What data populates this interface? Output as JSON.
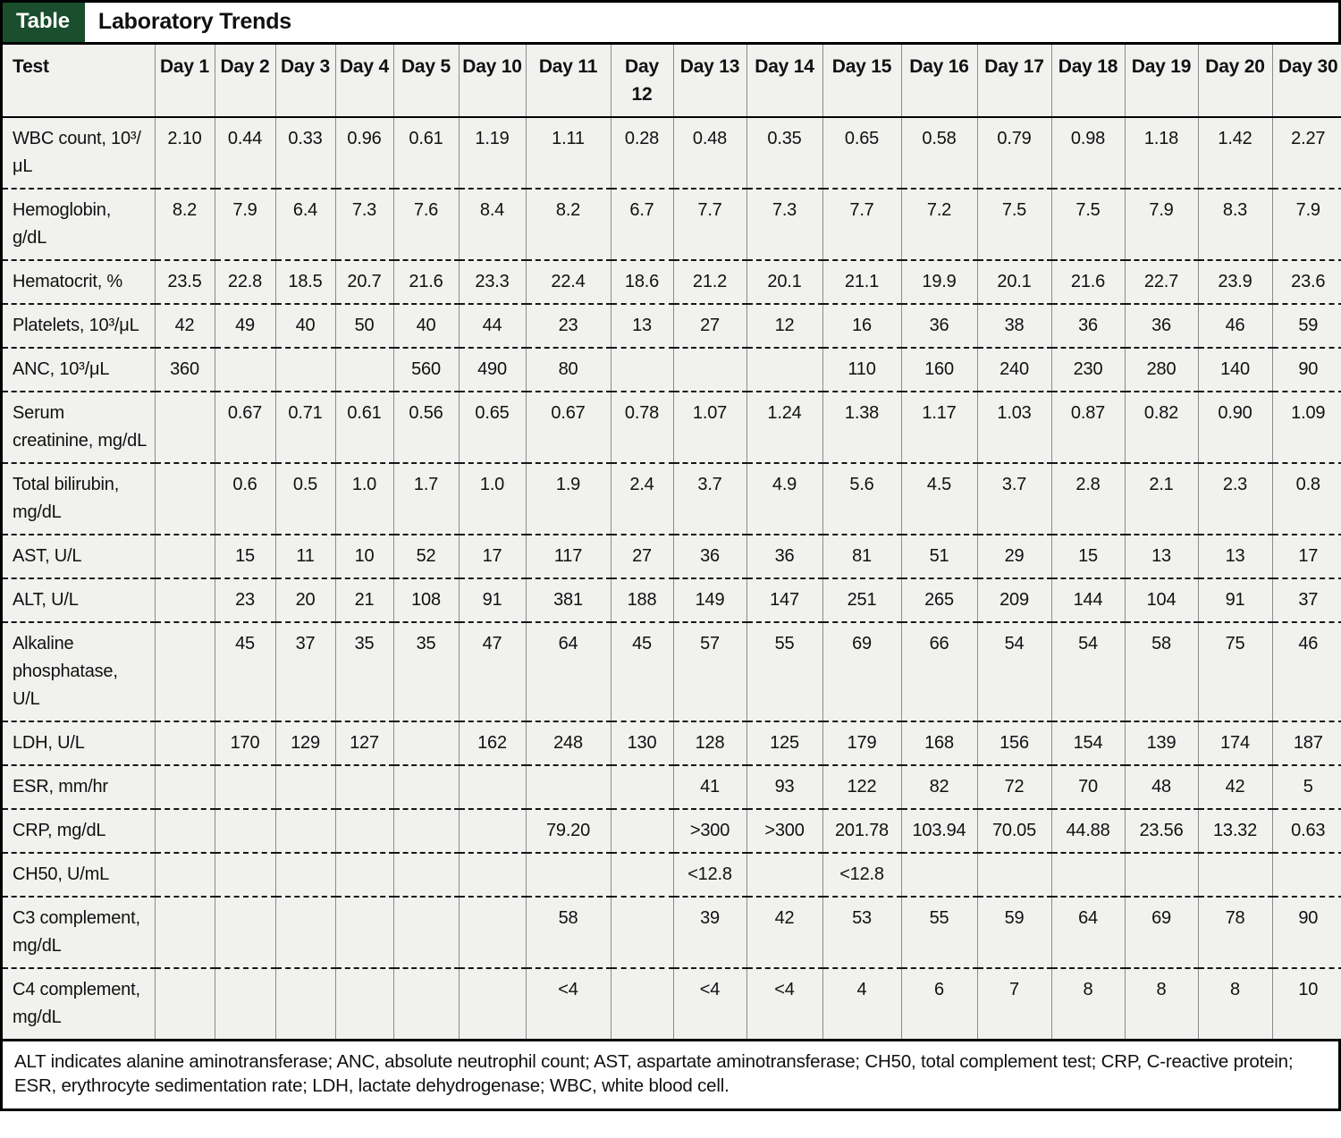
{
  "title_bar": {
    "badge": "Table",
    "title": "Laboratory Trends"
  },
  "colors": {
    "badge_green": "#1a4e2d",
    "cell_bg": "#f1f1ef",
    "border_black": "#000000",
    "grid_gray": "#8b8b8b"
  },
  "table": {
    "columns": [
      "Test",
      "Day 1",
      "Day 2",
      "Day 3",
      "Day 4",
      "Day 5",
      "Day 10",
      "Day 11",
      "Day 12",
      "Day 13",
      "Day 14",
      "Day 15",
      "Day 16",
      "Day 17",
      "Day 18",
      "Day 19",
      "Day 20",
      "Day 30"
    ],
    "rows": [
      {
        "test": "WBC count, 10³/μL",
        "values": [
          "2.10",
          "0.44",
          "0.33",
          "0.96",
          "0.61",
          "1.19",
          "1.11",
          "0.28",
          "0.48",
          "0.35",
          "0.65",
          "0.58",
          "0.79",
          "0.98",
          "1.18",
          "1.42",
          "2.27"
        ]
      },
      {
        "test": "Hemoglobin, g/dL",
        "values": [
          "8.2",
          "7.9",
          "6.4",
          "7.3",
          "7.6",
          "8.4",
          "8.2",
          "6.7",
          "7.7",
          "7.3",
          "7.7",
          "7.2",
          "7.5",
          "7.5",
          "7.9",
          "8.3",
          "7.9"
        ]
      },
      {
        "test": "Hematocrit, %",
        "values": [
          "23.5",
          "22.8",
          "18.5",
          "20.7",
          "21.6",
          "23.3",
          "22.4",
          "18.6",
          "21.2",
          "20.1",
          "21.1",
          "19.9",
          "20.1",
          "21.6",
          "22.7",
          "23.9",
          "23.6"
        ]
      },
      {
        "test": "Platelets, 10³/μL",
        "values": [
          "42",
          "49",
          "40",
          "50",
          "40",
          "44",
          "23",
          "13",
          "27",
          "12",
          "16",
          "36",
          "38",
          "36",
          "36",
          "46",
          "59"
        ]
      },
      {
        "test": "ANC, 10³/μL",
        "values": [
          "360",
          "",
          "",
          "",
          "560",
          "490",
          "80",
          "",
          "",
          "",
          "110",
          "160",
          "240",
          "230",
          "280",
          "140",
          "90"
        ]
      },
      {
        "test": "Serum creatinine, mg/dL",
        "values": [
          "",
          "0.67",
          "0.71",
          "0.61",
          "0.56",
          "0.65",
          "0.67",
          "0.78",
          "1.07",
          "1.24",
          "1.38",
          "1.17",
          "1.03",
          "0.87",
          "0.82",
          "0.90",
          "1.09"
        ]
      },
      {
        "test": "Total bilirubin, mg/dL",
        "values": [
          "",
          "0.6",
          "0.5",
          "1.0",
          "1.7",
          "1.0",
          "1.9",
          "2.4",
          "3.7",
          "4.9",
          "5.6",
          "4.5",
          "3.7",
          "2.8",
          "2.1",
          "2.3",
          "0.8"
        ]
      },
      {
        "test": "AST, U/L",
        "values": [
          "",
          "15",
          "11",
          "10",
          "52",
          "17",
          "117",
          "27",
          "36",
          "36",
          "81",
          "51",
          "29",
          "15",
          "13",
          "13",
          "17"
        ]
      },
      {
        "test": "ALT, U/L",
        "values": [
          "",
          "23",
          "20",
          "21",
          "108",
          "91",
          "381",
          "188",
          "149",
          "147",
          "251",
          "265",
          "209",
          "144",
          "104",
          "91",
          "37"
        ]
      },
      {
        "test": "Alkaline phosphatase, U/L",
        "values": [
          "",
          "45",
          "37",
          "35",
          "35",
          "47",
          "64",
          "45",
          "57",
          "55",
          "69",
          "66",
          "54",
          "54",
          "58",
          "75",
          "46"
        ]
      },
      {
        "test": "LDH, U/L",
        "values": [
          "",
          "170",
          "129",
          "127",
          "",
          "162",
          "248",
          "130",
          "128",
          "125",
          "179",
          "168",
          "156",
          "154",
          "139",
          "174",
          "187"
        ]
      },
      {
        "test": "ESR, mm/hr",
        "values": [
          "",
          "",
          "",
          "",
          "",
          "",
          "",
          "",
          "41",
          "93",
          "122",
          "82",
          "72",
          "70",
          "48",
          "42",
          "5"
        ]
      },
      {
        "test": "CRP, mg/dL",
        "values": [
          "",
          "",
          "",
          "",
          "",
          "",
          "79.20",
          "",
          ">300",
          ">300",
          "201.78",
          "103.94",
          "70.05",
          "44.88",
          "23.56",
          "13.32",
          "0.63"
        ]
      },
      {
        "test": "CH50, U/mL",
        "values": [
          "",
          "",
          "",
          "",
          "",
          "",
          "",
          "",
          "<12.8",
          "",
          "<12.8",
          "",
          "",
          "",
          "",
          "",
          ""
        ]
      },
      {
        "test": "C3 complement, mg/dL",
        "values": [
          "",
          "",
          "",
          "",
          "",
          "",
          "58",
          "",
          "39",
          "42",
          "53",
          "55",
          "59",
          "64",
          "69",
          "78",
          "90"
        ]
      },
      {
        "test": "C4 complement, mg/dL",
        "values": [
          "",
          "",
          "",
          "",
          "",
          "",
          "<4",
          "",
          "<4",
          "<4",
          "4",
          "6",
          "7",
          "8",
          "8",
          "8",
          "10"
        ]
      }
    ]
  },
  "footnote": "ALT indicates alanine aminotransferase; ANC, absolute neutrophil count; AST, aspartate aminotransferase; CH50, total complement test; CRP, C-reactive protein; ESR, erythrocyte sedimentation rate; LDH, lactate dehydrogenase; WBC, white blood cell."
}
